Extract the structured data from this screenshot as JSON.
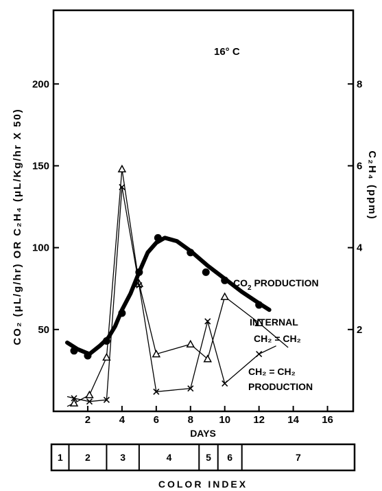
{
  "chart_data": {
    "type": "line",
    "annotation_temperature": "16° C",
    "xlabel": "DAYS",
    "ylabel_left": "CO2 (μL/g/hr) OR C2H4 (μL/Kg/hr X 50)",
    "ylabel_right": "C2H4 (ppm)",
    "x_ticks": [
      "2",
      "4",
      "6",
      "8",
      "10",
      "12",
      "14",
      "16"
    ],
    "y_left_ticks": [
      "50",
      "100",
      "150",
      "200"
    ],
    "y_right_ticks": [
      "2",
      "4",
      "6",
      "8"
    ],
    "xlim": [
      0,
      17.5
    ],
    "ylim_left": [
      0,
      245
    ],
    "ylim_right": [
      0,
      9.8
    ],
    "grid": false,
    "series": [
      {
        "name": "CO2 PRODUCTION",
        "axis": "left",
        "style": "thick-line-filled-circles",
        "curve": [
          [
            0.8,
            42
          ],
          [
            1.4,
            38
          ],
          [
            2.1,
            35
          ],
          [
            2.7,
            40
          ],
          [
            3.2,
            45
          ],
          [
            3.6,
            52
          ],
          [
            4.0,
            62
          ],
          [
            4.5,
            72
          ],
          [
            5.0,
            85
          ],
          [
            5.5,
            97
          ],
          [
            6.0,
            103
          ],
          [
            6.5,
            106
          ],
          [
            7.2,
            104
          ],
          [
            8.0,
            98
          ],
          [
            9.0,
            89
          ],
          [
            10.0,
            81
          ],
          [
            11.0,
            73
          ],
          [
            12.0,
            66
          ],
          [
            12.6,
            62
          ]
        ],
        "markers": [
          [
            1.2,
            37
          ],
          [
            2.0,
            34
          ],
          [
            3.1,
            43
          ],
          [
            4.0,
            60
          ],
          [
            5.0,
            85
          ],
          [
            6.1,
            106
          ],
          [
            8.0,
            97
          ],
          [
            8.9,
            85
          ],
          [
            10.0,
            80
          ],
          [
            12.0,
            65
          ]
        ]
      },
      {
        "name": "INTERNAL CH2 = CH2",
        "axis": "left",
        "style": "thin-line-triangles",
        "points": [
          [
            0.8,
            3
          ],
          [
            1.2,
            5
          ],
          [
            2.1,
            10
          ],
          [
            3.1,
            33
          ],
          [
            4.0,
            148
          ],
          [
            5.0,
            78
          ],
          [
            6.0,
            35
          ],
          [
            8.0,
            41
          ],
          [
            9.0,
            32
          ],
          [
            10.0,
            70
          ],
          [
            12.0,
            54
          ],
          [
            13.7,
            39
          ]
        ]
      },
      {
        "name": "CH2 = CH2 PRODUCTION",
        "axis": "left",
        "style": "thin-line-crosses",
        "points": [
          [
            0.8,
            9
          ],
          [
            1.2,
            8
          ],
          [
            2.1,
            6
          ],
          [
            3.1,
            7
          ],
          [
            4.0,
            137
          ],
          [
            5.0,
            77
          ],
          [
            6.0,
            12
          ],
          [
            8.0,
            14
          ],
          [
            9.0,
            55
          ],
          [
            10.0,
            17
          ],
          [
            12.0,
            35
          ],
          [
            13.0,
            40
          ]
        ]
      }
    ]
  },
  "labels": {
    "temperature": "16° C",
    "co2_main": "CO",
    "co2_sub": "2",
    "co2_tail": " PRODUCTION",
    "internal_line1": "INTERNAL",
    "internal_line2": "CH₂ = CH₂",
    "prod_line1": "CH₂ = CH₂",
    "prod_line2": "PRODUCTION",
    "xlabel": "DAYS",
    "ylabel_left": "CO₂ (μL/g/hr)   OR   C₂H₄ (μL/Kg/hr X 50)",
    "ylabel_right": "C₂H₄ (ppm)"
  },
  "color_index": {
    "title": "COLOR INDEX",
    "cells": [
      {
        "label": "1",
        "from": 0.0,
        "to": 0.9
      },
      {
        "label": "2",
        "from": 0.9,
        "to": 3.1
      },
      {
        "label": "3",
        "from": 3.1,
        "to": 5.0
      },
      {
        "label": "4",
        "from": 5.0,
        "to": 8.5
      },
      {
        "label": "5",
        "from": 8.5,
        "to": 9.6
      },
      {
        "label": "6",
        "from": 9.6,
        "to": 11.0
      },
      {
        "label": "7",
        "from": 11.0,
        "to": 17.5
      }
    ]
  }
}
